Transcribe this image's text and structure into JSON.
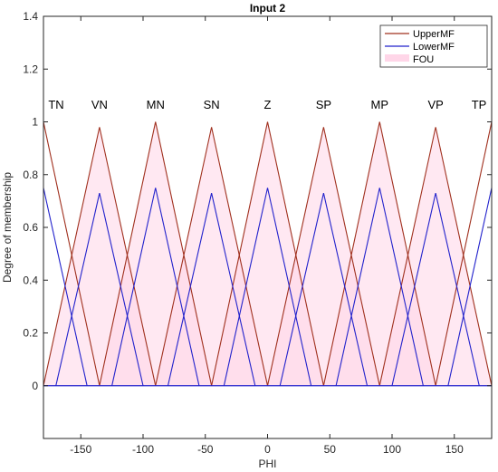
{
  "chart_data": {
    "type": "line",
    "title": "Input 2",
    "xlabel": "PHI",
    "ylabel": "Degree of membership",
    "xlim": [
      -180,
      180
    ],
    "ylim": [
      -0.2,
      1.4
    ],
    "xticks": [
      -150,
      -100,
      -50,
      0,
      50,
      100,
      150
    ],
    "xtick_labels": [
      "-150",
      "-100",
      "-50",
      "0",
      "50",
      "100",
      "150"
    ],
    "yticks": [
      0,
      0.2,
      0.4,
      0.6,
      0.8,
      1,
      1.2,
      1.4
    ],
    "ytick_labels": [
      "0",
      "0.2",
      "0.4",
      "0.6",
      "0.8",
      "1",
      "1.2",
      "1.4"
    ],
    "grid": false,
    "legend_position": "top-right",
    "legend": [
      {
        "label": "UpperMF",
        "color": "#a0301e"
      },
      {
        "label": "LowerMF",
        "color": "#2222cc"
      },
      {
        "label": "FOU",
        "color": "#ffd6e8"
      }
    ],
    "membership_functions": [
      {
        "name": "TN",
        "peak": -180,
        "upper_height": 1.0,
        "upper_half_width": 45,
        "lower_height": 0.75,
        "lower_half_width": 35
      },
      {
        "name": "VN",
        "peak": -135,
        "upper_height": 0.98,
        "upper_half_width": 45,
        "lower_height": 0.73,
        "lower_half_width": 35
      },
      {
        "name": "MN",
        "peak": -90,
        "upper_height": 1.0,
        "upper_half_width": 45,
        "lower_height": 0.75,
        "lower_half_width": 35
      },
      {
        "name": "SN",
        "peak": -45,
        "upper_height": 0.98,
        "upper_half_width": 45,
        "lower_height": 0.73,
        "lower_half_width": 35
      },
      {
        "name": "Z",
        "peak": 0,
        "upper_height": 1.0,
        "upper_half_width": 45,
        "lower_height": 0.75,
        "lower_half_width": 35
      },
      {
        "name": "SP",
        "peak": 45,
        "upper_height": 0.98,
        "upper_half_width": 45,
        "lower_height": 0.73,
        "lower_half_width": 35
      },
      {
        "name": "MP",
        "peak": 90,
        "upper_height": 1.0,
        "upper_half_width": 45,
        "lower_height": 0.75,
        "lower_half_width": 35
      },
      {
        "name": "VP",
        "peak": 135,
        "upper_height": 0.98,
        "upper_half_width": 45,
        "lower_height": 0.73,
        "lower_half_width": 35
      },
      {
        "name": "TP",
        "peak": 180,
        "upper_height": 1.0,
        "upper_half_width": 45,
        "lower_height": 0.75,
        "lower_half_width": 35
      }
    ],
    "mf_label_y": 1.05,
    "colors": {
      "upper": "#a0301e",
      "lower": "#2222cc",
      "fou": "#ffd6e8",
      "axis": "#262626",
      "baseline": "#2222cc"
    }
  }
}
